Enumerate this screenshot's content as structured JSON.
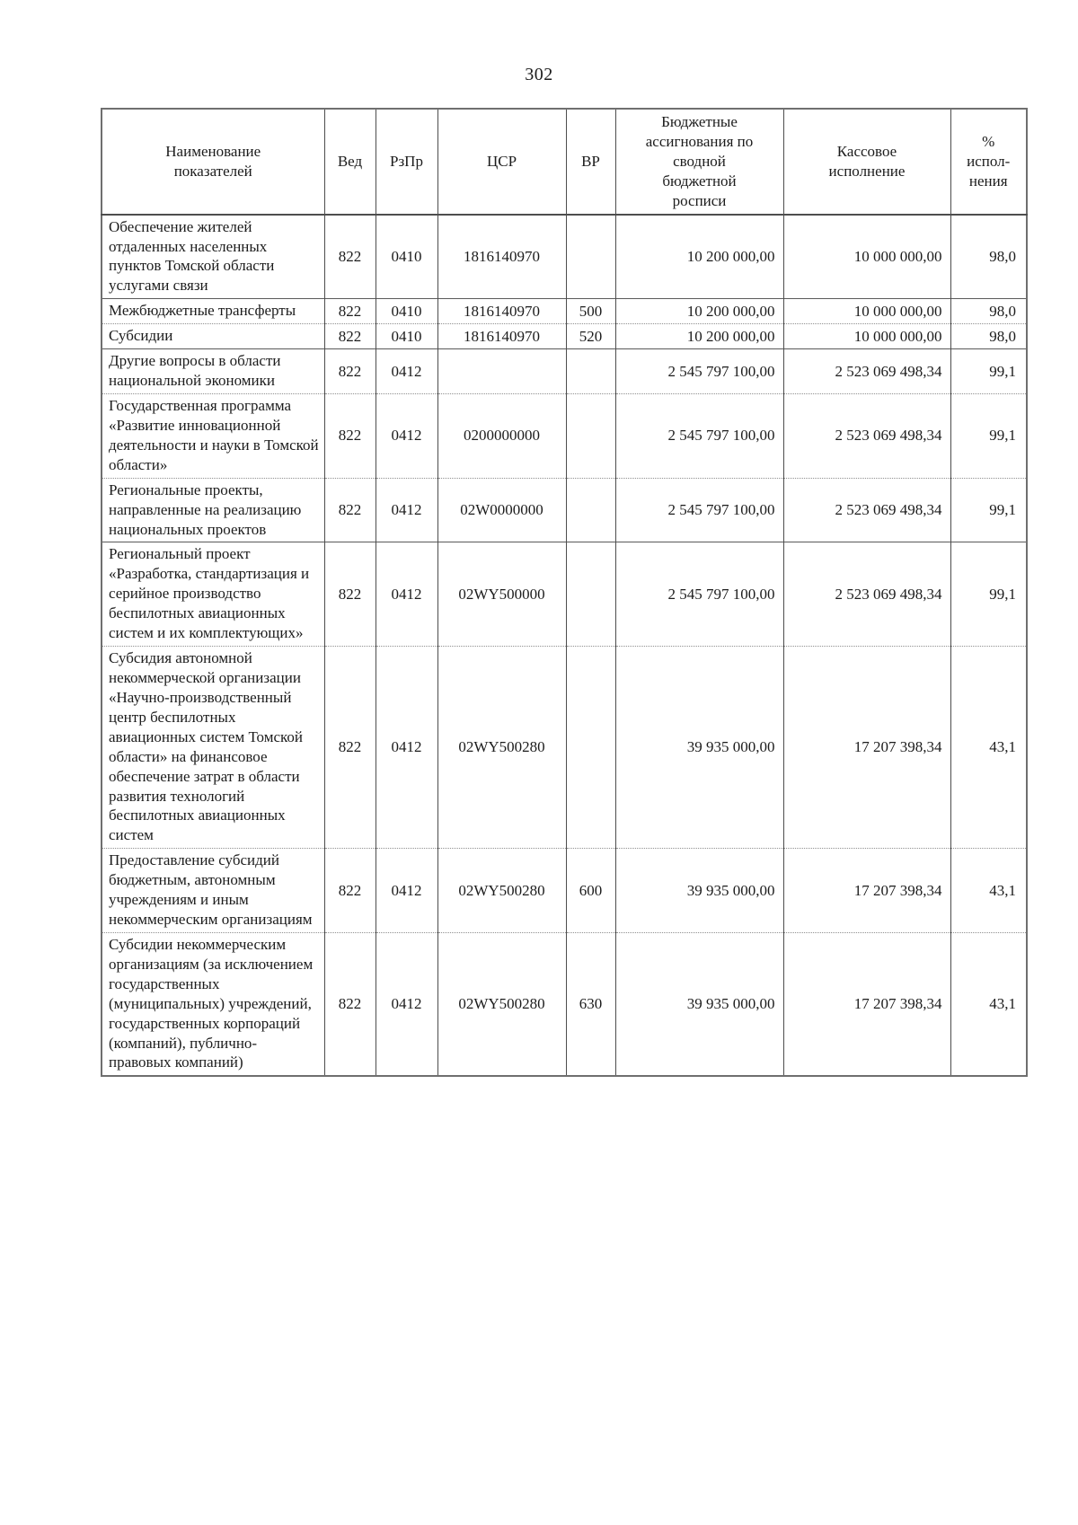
{
  "page": {
    "number": "302"
  },
  "colors": {
    "background": "#ffffff",
    "text": "#1c1c1c",
    "border_outer": "#6f6f6f",
    "border_inner": "#4d4d4d",
    "border_dotted": "#8f8f8f"
  },
  "table": {
    "columns": [
      {
        "key": "name",
        "label": "Наименование\nпоказателей"
      },
      {
        "key": "ved",
        "label": "Вед"
      },
      {
        "key": "rzpr",
        "label": "РзПр"
      },
      {
        "key": "csr",
        "label": "ЦСР"
      },
      {
        "key": "vr",
        "label": "ВР"
      },
      {
        "key": "budget",
        "label": "Бюджетные\nассигнования по\nсводной\nбюджетной\nросписи"
      },
      {
        "key": "cash",
        "label": "Кассовое\nисполнение"
      },
      {
        "key": "pct",
        "label": "%\nиспол-\nнения"
      }
    ],
    "rows": [
      {
        "name": "Обеспечение жителей отдаленных населенных пунктов Томской области услугами связи",
        "ved": "822",
        "rzpr": "0410",
        "csr": "1816140970",
        "vr": "",
        "budget": "10 200 000,00",
        "cash": "10 000 000,00",
        "pct": "98,0",
        "sep": "solid"
      },
      {
        "name": "Межбюджетные трансферты",
        "ved": "822",
        "rzpr": "0410",
        "csr": "1816140970",
        "vr": "500",
        "budget": "10 200 000,00",
        "cash": "10 000 000,00",
        "pct": "98,0",
        "sep": "dotted"
      },
      {
        "name": "Субсидии",
        "ved": "822",
        "rzpr": "0410",
        "csr": "1816140970",
        "vr": "520",
        "budget": "10 200 000,00",
        "cash": "10 000 000,00",
        "pct": "98,0",
        "sep": "solid"
      },
      {
        "name": "Другие вопросы в области национальной экономики",
        "ved": "822",
        "rzpr": "0412",
        "csr": "",
        "vr": "",
        "budget": "2 545 797 100,00",
        "cash": "2 523 069 498,34",
        "pct": "99,1",
        "sep": "dotted"
      },
      {
        "name": "Государственная программа «Развитие инновационной деятельности и науки в Томской области»",
        "ved": "822",
        "rzpr": "0412",
        "csr": "0200000000",
        "vr": "",
        "budget": "2 545 797 100,00",
        "cash": "2 523 069 498,34",
        "pct": "99,1",
        "sep": "dotted"
      },
      {
        "name": "Региональные проекты, направленные на реализацию национальных проектов",
        "ved": "822",
        "rzpr": "0412",
        "csr": "02W0000000",
        "vr": "",
        "budget": "2 545 797 100,00",
        "cash": "2 523 069 498,34",
        "pct": "99,1",
        "sep": "solid"
      },
      {
        "name": "Региональный проект «Разработка, стандартизация и серийное производство беспилотных авиационных систем и их комплектующих»",
        "ved": "822",
        "rzpr": "0412",
        "csr": "02WY500000",
        "vr": "",
        "budget": "2 545 797 100,00",
        "cash": "2 523 069 498,34",
        "pct": "99,1",
        "sep": "dotted"
      },
      {
        "name": "Субсидия автономной некоммерческой организации «Научно-производственный центр беспилотных авиационных систем Томской области» на финансовое обеспечение затрат в области развития технологий беспилотных авиационных систем",
        "ved": "822",
        "rzpr": "0412",
        "csr": "02WY500280",
        "vr": "",
        "budget": "39 935 000,00",
        "cash": "17 207 398,34",
        "pct": "43,1",
        "sep": "dotted"
      },
      {
        "name": "Предоставление субсидий бюджетным, автономным учреждениям и иным некоммерческим организациям",
        "ved": "822",
        "rzpr": "0412",
        "csr": "02WY500280",
        "vr": "600",
        "budget": "39 935 000,00",
        "cash": "17 207 398,34",
        "pct": "43,1",
        "sep": "dotted"
      },
      {
        "name": "Субсидии некоммерческим организациям (за исключением государственных (муниципальных) учреждений, государственных корпораций (компаний), публично-правовых компаний)",
        "ved": "822",
        "rzpr": "0412",
        "csr": "02WY500280",
        "vr": "630",
        "budget": "39 935 000,00",
        "cash": "17 207 398,34",
        "pct": "43,1",
        "sep": "none"
      }
    ]
  }
}
